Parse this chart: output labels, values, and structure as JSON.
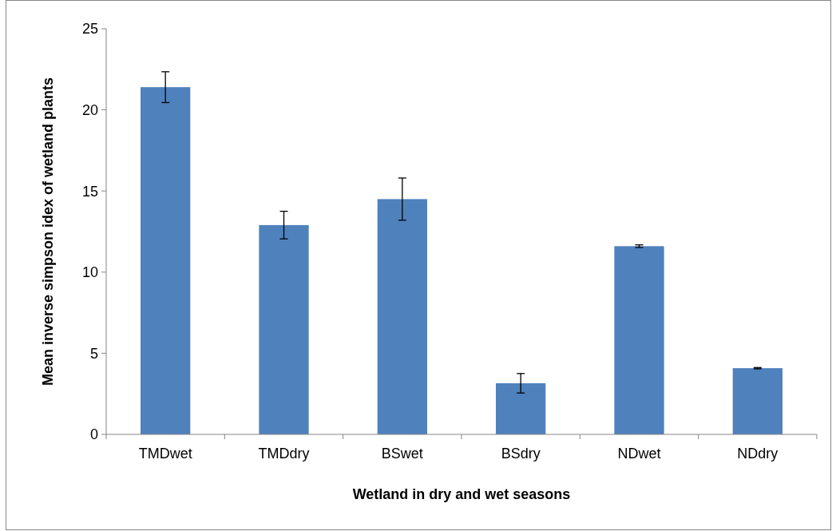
{
  "chart_data": {
    "type": "bar",
    "xlabel": "Wetland in dry and wet seasons",
    "ylabel": "Mean inverse simpson idex of wetland plants",
    "categories": [
      "TMDwet",
      "TMDdry",
      "BSwet",
      "BSdry",
      "NDwet",
      "NDdry"
    ],
    "values": [
      21.4,
      12.9,
      14.5,
      3.15,
      11.6,
      4.08
    ],
    "errors": [
      0.95,
      0.85,
      1.3,
      0.6,
      0.08,
      0.04
    ],
    "color": "#4f81bd",
    "ylim": [
      0,
      25
    ],
    "yticks": [
      0,
      5,
      10,
      15,
      20,
      25
    ],
    "grid": false
  }
}
